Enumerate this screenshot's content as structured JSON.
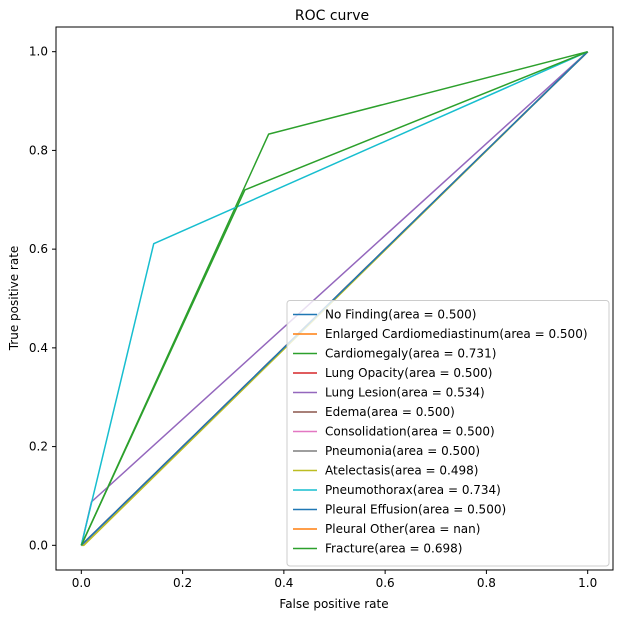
{
  "chart_data": {
    "type": "line",
    "title": "ROC curve",
    "xlabel": "False positive rate",
    "ylabel": "True positive rate",
    "xlim": [
      -0.05,
      1.05
    ],
    "ylim": [
      -0.05,
      1.05
    ],
    "xticks": [
      "0.0",
      "0.2",
      "0.4",
      "0.6",
      "0.8",
      "1.0"
    ],
    "yticks": [
      "0.0",
      "0.2",
      "0.4",
      "0.6",
      "0.8",
      "1.0"
    ],
    "grid": false,
    "legend_position": "lower-right",
    "series": [
      {
        "name": "No Finding(area = 0.500)",
        "color": "#1f77b4",
        "x": [
          0,
          1
        ],
        "y": [
          0,
          1
        ]
      },
      {
        "name": "Enlarged Cardiomediastinum(area = 0.500)",
        "color": "#ff7f0e",
        "x": [
          0,
          1
        ],
        "y": [
          0,
          1
        ]
      },
      {
        "name": "Cardiomegaly(area = 0.731)",
        "color": "#2ca02c",
        "x": [
          0,
          0.37,
          1
        ],
        "y": [
          0,
          0.833,
          1
        ]
      },
      {
        "name": "Lung Opacity(area = 0.500)",
        "color": "#d62728",
        "x": [
          0,
          1
        ],
        "y": [
          0,
          1
        ]
      },
      {
        "name": "Lung Lesion(area = 0.534)",
        "color": "#9467bd",
        "x": [
          0,
          0.02,
          1
        ],
        "y": [
          0,
          0.088,
          1
        ]
      },
      {
        "name": "Edema(area = 0.500)",
        "color": "#8c564b",
        "x": [
          0,
          1
        ],
        "y": [
          0,
          1
        ]
      },
      {
        "name": "Consolidation(area = 0.500)",
        "color": "#e377c2",
        "x": [
          0,
          1
        ],
        "y": [
          0,
          1
        ]
      },
      {
        "name": "Pneumonia(area = 0.500)",
        "color": "#7f7f7f",
        "x": [
          0,
          1
        ],
        "y": [
          0,
          1
        ]
      },
      {
        "name": "Atelectasis(area = 0.498)",
        "color": "#bcbd22",
        "x": [
          0,
          0.005,
          1
        ],
        "y": [
          0,
          0.0,
          1
        ]
      },
      {
        "name": "Pneumothorax(area = 0.734)",
        "color": "#17becf",
        "x": [
          0,
          0.143,
          1
        ],
        "y": [
          0,
          0.611,
          1
        ]
      },
      {
        "name": "Pleural Effusion(area = 0.500)",
        "color": "#1f77b4",
        "x": [
          0,
          1
        ],
        "y": [
          0,
          1
        ]
      },
      {
        "name": "Pleural Other(area = nan)",
        "color": "#ff7f0e",
        "x": [],
        "y": []
      },
      {
        "name": "Fracture(area = 0.698)",
        "color": "#2ca02c",
        "x": [
          0,
          0.323,
          1
        ],
        "y": [
          0,
          0.72,
          1
        ]
      }
    ]
  }
}
